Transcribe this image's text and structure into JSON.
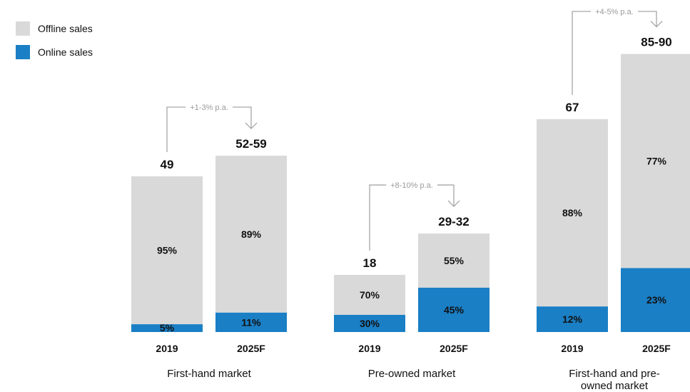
{
  "legend": [
    {
      "label": "Offline sales",
      "color": "#d9d9d9"
    },
    {
      "label": "Online sales",
      "color": "#1a7fc5"
    }
  ],
  "chart_data": {
    "type": "bar",
    "stacked": true,
    "title": "",
    "ylim": [
      0,
      90
    ],
    "series": [
      {
        "name": "Offline sales",
        "color": "#d9d9d9"
      },
      {
        "name": "Online sales",
        "color": "#1a7fc5"
      }
    ],
    "groups": [
      {
        "label": "First-hand market",
        "growth_label": "+1-3% p.a.",
        "bars": [
          {
            "year": "2019",
            "total": 49,
            "total_label": "49",
            "offline_pct": 95,
            "online_pct": 5,
            "offline_label": "95%",
            "online_label": "5%"
          },
          {
            "year": "2025F",
            "total": 55.5,
            "total_label": "52-59",
            "offline_pct": 89,
            "online_pct": 11,
            "offline_label": "89%",
            "online_label": "11%"
          }
        ]
      },
      {
        "label": "Pre-owned market",
        "growth_label": "+8-10% p.a.",
        "bars": [
          {
            "year": "2019",
            "total": 18,
            "total_label": "18",
            "offline_pct": 70,
            "online_pct": 30,
            "offline_label": "70%",
            "online_label": "30%"
          },
          {
            "year": "2025F",
            "total": 31,
            "total_label": "29-32",
            "offline_pct": 55,
            "online_pct": 45,
            "offline_label": "55%",
            "online_label": "45%"
          }
        ]
      },
      {
        "label": "First-hand and pre-owned market",
        "growth_label": "+4-5% p.a.",
        "bars": [
          {
            "year": "2019",
            "total": 67,
            "total_label": "67",
            "offline_pct": 88,
            "online_pct": 12,
            "offline_label": "88%",
            "online_label": "12%"
          },
          {
            "year": "2025F",
            "total": 87.5,
            "total_label": "85-90",
            "offline_pct": 77,
            "online_pct": 23,
            "offline_label": "77%",
            "online_label": "23%"
          }
        ]
      }
    ]
  }
}
